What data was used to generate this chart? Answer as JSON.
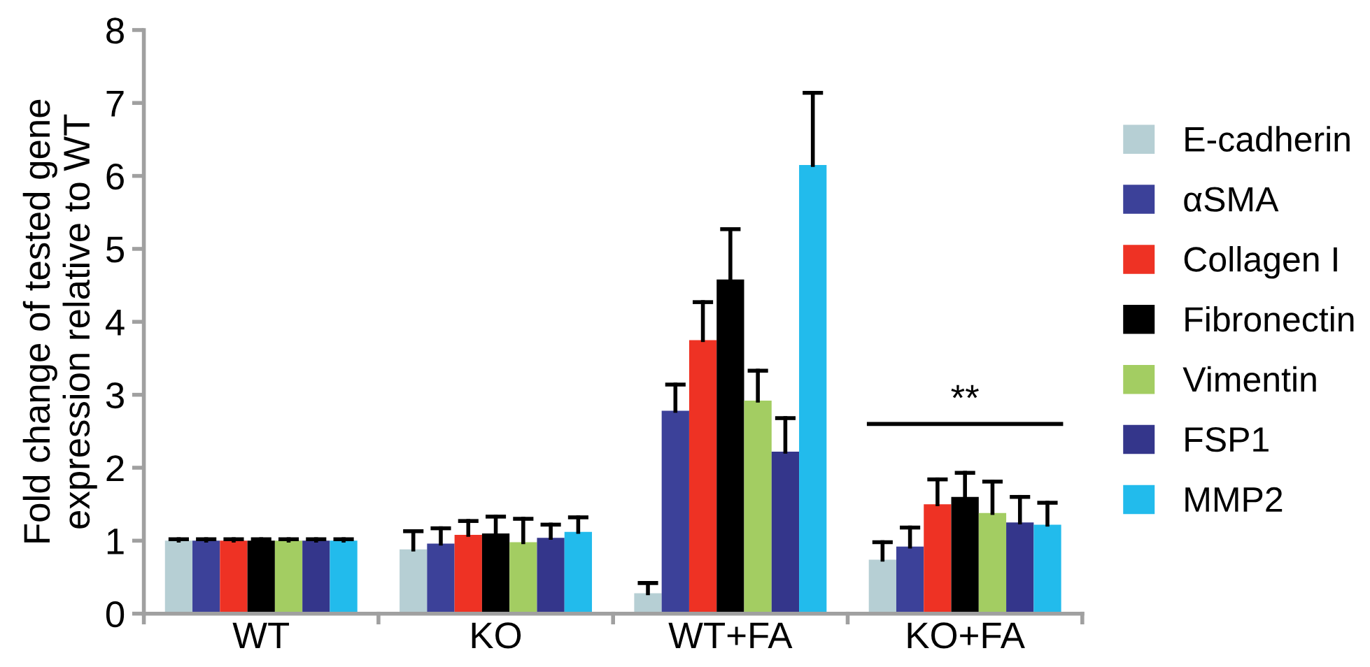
{
  "chart_data": {
    "type": "bar",
    "ylabel": "Fold change of tested gene\nexpression relative to WT",
    "categories": [
      "WT",
      "KO",
      "WT+FA",
      "KO+FA"
    ],
    "series": [
      {
        "name": "E-cadherin",
        "color": "#b6cfd4",
        "values": [
          1,
          0.88,
          0.28,
          0.74
        ],
        "errors": [
          [
            1,
            1.02
          ],
          [
            0.88,
            1.13
          ],
          [
            0.28,
            0.42
          ],
          [
            0.74,
            0.98
          ]
        ]
      },
      {
        "name": "αSMA",
        "color": "#3c4199",
        "values": [
          1,
          0.96,
          2.78,
          0.92
        ],
        "errors": [
          [
            1,
            1.02
          ],
          [
            0.96,
            1.17
          ],
          [
            2.78,
            3.14
          ],
          [
            0.92,
            1.18
          ]
        ]
      },
      {
        "name": "Collagen I",
        "color": "#ee3224",
        "values": [
          1,
          1.08,
          3.75,
          1.5
        ],
        "errors": [
          [
            1,
            1.02
          ],
          [
            1.08,
            1.27
          ],
          [
            3.75,
            4.27
          ],
          [
            1.5,
            1.84
          ]
        ]
      },
      {
        "name": "Fibronectin",
        "color": "#000000",
        "values": [
          1,
          1.1,
          4.58,
          1.6
        ],
        "errors": [
          [
            1,
            1.02
          ],
          [
            1.1,
            1.33
          ],
          [
            4.58,
            5.27
          ],
          [
            1.6,
            1.93
          ]
        ]
      },
      {
        "name": "Vimentin",
        "color": "#a3cd62",
        "values": [
          1,
          0.98,
          2.92,
          1.38
        ],
        "errors": [
          [
            1,
            1.02
          ],
          [
            0.98,
            1.3
          ],
          [
            2.92,
            3.33
          ],
          [
            1.38,
            1.81
          ]
        ]
      },
      {
        "name": "FSP1",
        "color": "#34368b",
        "values": [
          1,
          1.04,
          2.22,
          1.25
        ],
        "errors": [
          [
            1,
            1.02
          ],
          [
            1.04,
            1.22
          ],
          [
            2.22,
            2.68
          ],
          [
            1.25,
            1.6
          ]
        ]
      },
      {
        "name": "MMP2",
        "color": "#22bbec",
        "values": [
          1,
          1.12,
          6.15,
          1.22
        ],
        "errors": [
          [
            1,
            1.02
          ],
          [
            1.12,
            1.32
          ],
          [
            6.15,
            7.14
          ],
          [
            1.22,
            1.52
          ]
        ]
      }
    ],
    "ylim": [
      0,
      8
    ],
    "yticks": [
      0,
      1,
      2,
      3,
      4,
      5,
      6,
      7,
      8
    ],
    "annotations": [
      "**"
    ],
    "legend": "right",
    "grid": false
  }
}
